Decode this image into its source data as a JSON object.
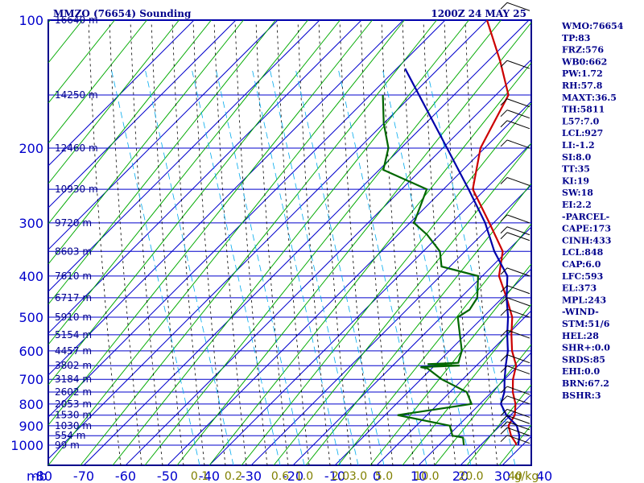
{
  "chart_data": {
    "type": "line",
    "title_left": "MMZO (76654) Sounding",
    "title_right": "1200Z 24 MAY 25",
    "pressure_ticks": [
      100,
      200,
      300,
      400,
      500,
      600,
      700,
      800,
      900,
      1000
    ],
    "plim": [
      100,
      1050
    ],
    "temperature_ticks": [
      {
        "value": -80,
        "label": "-80"
      },
      {
        "value": -70,
        "label": "-70"
      },
      {
        "value": -60,
        "label": "-60"
      },
      {
        "value": -50,
        "label": "-50"
      },
      {
        "value": -40,
        "label": "-40"
      },
      {
        "value": -30,
        "label": "-30"
      },
      {
        "value": -20,
        "label": "-20"
      },
      {
        "value": -10,
        "label": "-10"
      },
      {
        "value": 0,
        "label": "0"
      },
      {
        "value": 10,
        "label": "10"
      },
      {
        "value": 20,
        "label": "20"
      },
      {
        "value": 30,
        "label": "30"
      },
      {
        "value": 40,
        "label": "40"
      }
    ],
    "x_unit_label": "mb",
    "mixing_ratio_labels": [
      {
        "value": 0.1,
        "label": "0.1"
      },
      {
        "value": 0.2,
        "label": "0.2"
      },
      {
        "value": 0.6,
        "label": "0.6"
      },
      {
        "value": 1.0,
        "label": "1.0"
      },
      {
        "value": 2.0,
        "label": "2.0"
      },
      {
        "value": 3.0,
        "label": "3.0"
      },
      {
        "value": 5.0,
        "label": "5.0"
      },
      {
        "value": 10.0,
        "label": "10.0"
      },
      {
        "value": 20.0,
        "label": "20.0"
      },
      {
        "value": 40.0,
        "label": "40"
      }
    ],
    "mixing_ratio_unit": "g/kg",
    "height_labels": [
      {
        "p": 100,
        "label": "16640 m"
      },
      {
        "p": 150,
        "label": "14250 m"
      },
      {
        "p": 200,
        "label": "12460 m"
      },
      {
        "p": 250,
        "label": "10930 m"
      },
      {
        "p": 300,
        "label": "9720 m"
      },
      {
        "p": 350,
        "label": "8603 m"
      },
      {
        "p": 400,
        "label": "7610 m"
      },
      {
        "p": 450,
        "label": "6717 m"
      },
      {
        "p": 500,
        "label": "5910 m"
      },
      {
        "p": 550,
        "label": "5154 m"
      },
      {
        "p": 600,
        "label": "4457 m"
      },
      {
        "p": 650,
        "label": "3802 m"
      },
      {
        "p": 700,
        "label": "3184 m"
      },
      {
        "p": 750,
        "label": "2602 m"
      },
      {
        "p": 800,
        "label": "2053 m"
      },
      {
        "p": 850,
        "label": "1530 m"
      },
      {
        "p": 900,
        "label": "1030 m"
      },
      {
        "p": 950,
        "label": "554 m"
      },
      {
        "p": 1000,
        "label": "99 m"
      }
    ],
    "series": [
      {
        "role": "temperature",
        "color": "#cc0000",
        "points": [
          [
            100,
            -80
          ],
          [
            125,
            -67
          ],
          [
            150,
            -57
          ],
          [
            200,
            -51
          ],
          [
            250,
            -43
          ],
          [
            300,
            -31
          ],
          [
            350,
            -21
          ],
          [
            400,
            -16
          ],
          [
            450,
            -9
          ],
          [
            500,
            -3
          ],
          [
            550,
            1
          ],
          [
            600,
            5
          ],
          [
            650,
            9.5
          ],
          [
            700,
            12
          ],
          [
            750,
            15
          ],
          [
            800,
            18.5
          ],
          [
            850,
            21
          ],
          [
            900,
            22
          ],
          [
            950,
            25
          ],
          [
            990,
            28
          ],
          [
            1000,
            28.5
          ]
        ]
      },
      {
        "role": "dewpoint",
        "color": "#006600",
        "points": [
          [
            150,
            -87
          ],
          [
            175,
            -80
          ],
          [
            200,
            -73
          ],
          [
            225,
            -69
          ],
          [
            250,
            -54
          ],
          [
            300,
            -49
          ],
          [
            320,
            -43
          ],
          [
            350,
            -36
          ],
          [
            380,
            -32
          ],
          [
            400,
            -21
          ],
          [
            450,
            -16
          ],
          [
            480,
            -15
          ],
          [
            500,
            -16
          ],
          [
            600,
            -7
          ],
          [
            640,
            -5
          ],
          [
            645,
            -12
          ],
          [
            650,
            -4
          ],
          [
            655,
            -13
          ],
          [
            660,
            -11
          ],
          [
            700,
            -5
          ],
          [
            750,
            4
          ],
          [
            800,
            8
          ],
          [
            850,
            -7
          ],
          [
            900,
            8
          ],
          [
            950,
            11
          ],
          [
            960,
            14
          ],
          [
            1000,
            16
          ]
        ]
      },
      {
        "role": "parcel",
        "color": "#0000aa",
        "points": [
          [
            130,
            -88
          ],
          [
            200,
            -59
          ],
          [
            250,
            -44
          ],
          [
            300,
            -32
          ],
          [
            350,
            -23
          ],
          [
            400,
            -14
          ],
          [
            450,
            -9
          ],
          [
            500,
            -4
          ],
          [
            550,
            0
          ],
          [
            600,
            4
          ],
          [
            650,
            7
          ],
          [
            700,
            10
          ],
          [
            750,
            13
          ],
          [
            800,
            15
          ],
          [
            850,
            19
          ],
          [
            900,
            24
          ],
          [
            950,
            27
          ],
          [
            1000,
            29
          ]
        ]
      }
    ],
    "grid": true,
    "legend": "none"
  },
  "indices": [
    "WMO:76654",
    "TP:83",
    "FRZ:576",
    "WB0:662",
    "PW:1.72",
    "RH:57.8",
    "MAXT:36.5",
    "TH:5811",
    "L57:7.0",
    "LCL:927",
    "LI:-1.2",
    "SI:8.0",
    "TT:35",
    "KI:19",
    "SW:18",
    "EI:2.2",
    "-PARCEL-",
    "CAPE:173",
    "CINH:433",
    "LCL:848",
    "CAP:6.0",
    "LFC:593",
    "EL:373",
    "MPL:243",
    "-WIND-",
    "STM:51/6",
    "HEL:28",
    "SHR+:0.0",
    "SRDS:85",
    "EHI:0.0",
    "BRN:67.2",
    "BSHR:3"
  ],
  "colors": {
    "axis": "#00008b",
    "isobar": "#0000cc",
    "isotherm": "#0000cc",
    "dry_adiabat": "#00aa00",
    "moist_adiabat": "#000000",
    "mixing_ratio": "#00aaee",
    "wind_barb": "#000000"
  }
}
